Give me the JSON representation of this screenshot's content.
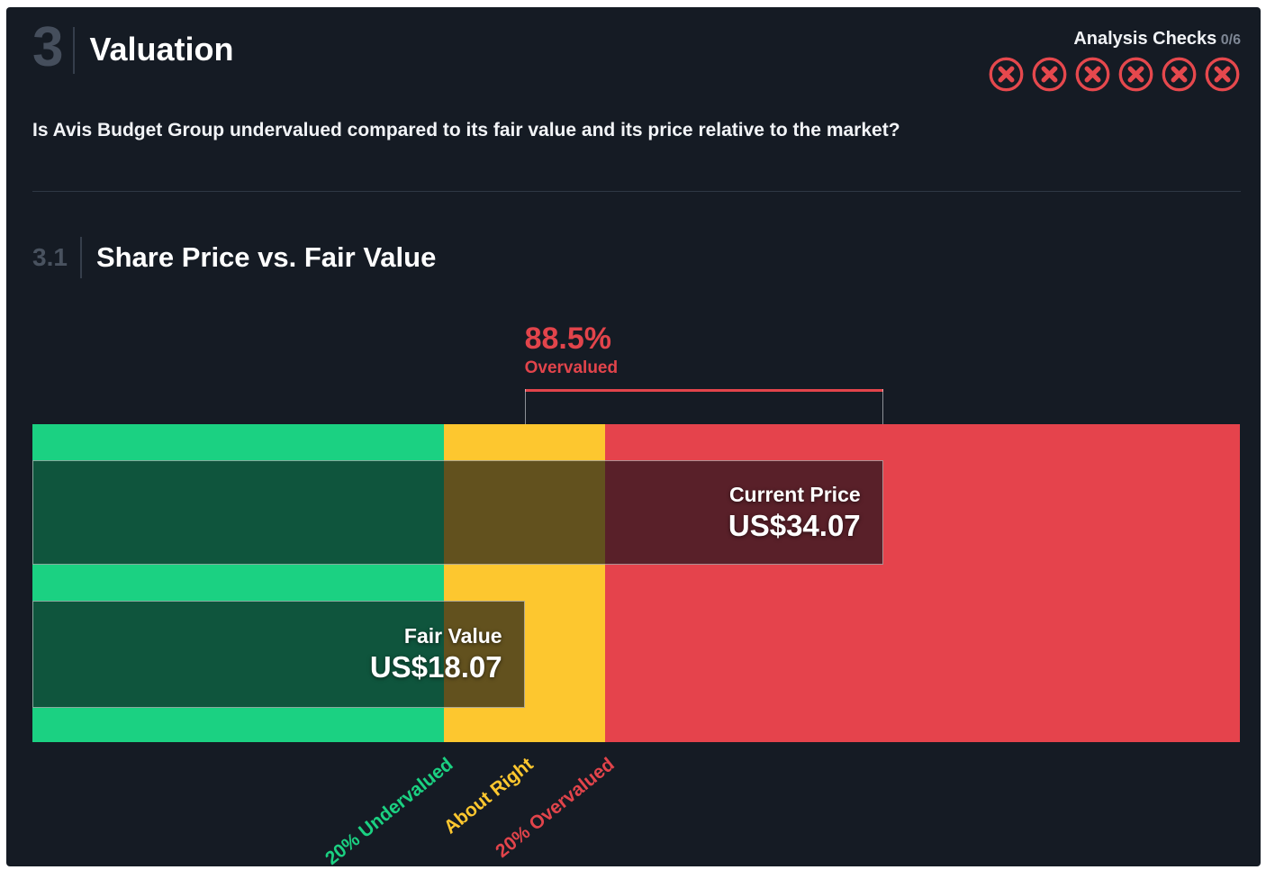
{
  "section": {
    "number": "3",
    "title": "Valuation",
    "question": "Is Avis Budget Group undervalued compared to its fair value and its price relative to the market?"
  },
  "analysis_checks": {
    "label": "Analysis Checks",
    "score": "0/6",
    "passed": 0,
    "total": 6,
    "fail_color": "#e5484d"
  },
  "subsection": {
    "number": "3.1",
    "title": "Share Price vs. Fair Value"
  },
  "chart_data": {
    "type": "bar",
    "title": "Share Price vs. Fair Value",
    "currency": "US$",
    "axis": {
      "min": -3.9,
      "max": 50.0
    },
    "bars": [
      {
        "label": "Current Price",
        "value": 34.07,
        "display": "US$34.07"
      },
      {
        "label": "Fair Value",
        "value": 18.07,
        "display": "US$18.07"
      }
    ],
    "annotation": {
      "value": "88.5%",
      "label": "Overvalued",
      "color": "#e2444b"
    },
    "bands": [
      {
        "label": "20% Undervalued",
        "to": 14.46,
        "color": "#1bd182",
        "label_color": "#1bd182"
      },
      {
        "label": "About Right",
        "to": 21.68,
        "color": "#fdc72f",
        "label_color": "#fdc72f"
      },
      {
        "label": "20% Overvalued",
        "to": 50.0,
        "color": "#e5434c",
        "label_color": "#e2444b"
      }
    ],
    "zone_label_anchors": [
      14.46,
      18.07,
      21.68
    ],
    "colors": {
      "bar_overlay": "rgba(8,13,20,0.63)",
      "bracket": "#e2444b",
      "background": "#151b24"
    }
  }
}
